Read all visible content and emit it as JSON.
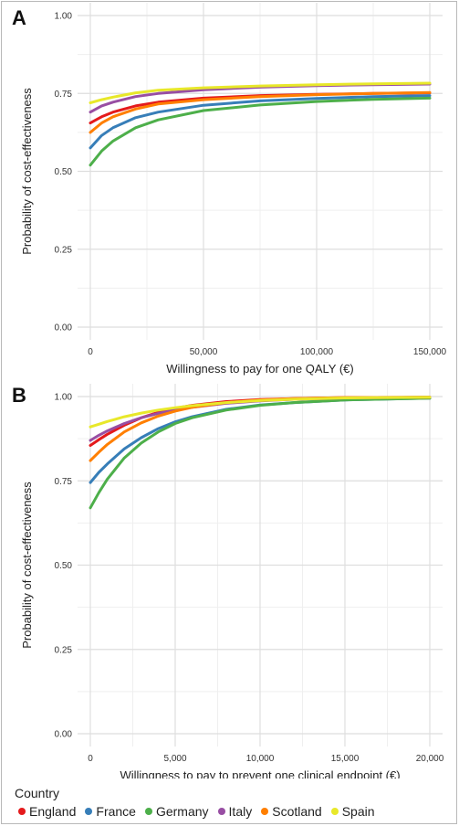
{
  "panels": {
    "a": {
      "letter": "A"
    },
    "b": {
      "letter": "B"
    }
  },
  "legend": {
    "title": "Country",
    "items": [
      {
        "name": "England",
        "color": "#e41a1c"
      },
      {
        "name": "France",
        "color": "#377eb8"
      },
      {
        "name": "Germany",
        "color": "#4daf4a"
      },
      {
        "name": "Italy",
        "color": "#984ea3"
      },
      {
        "name": "Scotland",
        "color": "#ff7f00"
      },
      {
        "name": "Spain",
        "color": "#e8e82a"
      }
    ]
  },
  "chart_data": [
    {
      "panel": "A",
      "type": "line",
      "title": "",
      "xlabel": "Willingness to pay for one QALY (€)",
      "ylabel": "Probability of cost-effectiveness",
      "xlim": [
        0,
        150000
      ],
      "ylim": [
        0,
        1
      ],
      "xticks": [
        0,
        50000,
        100000,
        150000
      ],
      "xtick_labels": [
        "0",
        "50,000",
        "100,000",
        "150,000"
      ],
      "yticks": [
        0,
        0.25,
        0.5,
        0.75,
        1
      ],
      "ytick_labels": [
        "0.00",
        "0.25",
        "0.50",
        "0.75",
        "1.00"
      ],
      "grid": true,
      "series": [
        {
          "name": "England",
          "color": "#e41a1c",
          "x": [
            0,
            5000,
            10000,
            20000,
            30000,
            50000,
            75000,
            100000,
            125000,
            150000
          ],
          "y": [
            0.655,
            0.675,
            0.69,
            0.71,
            0.722,
            0.735,
            0.743,
            0.747,
            0.75,
            0.752
          ]
        },
        {
          "name": "France",
          "color": "#377eb8",
          "x": [
            0,
            5000,
            10000,
            20000,
            30000,
            50000,
            75000,
            100000,
            125000,
            150000
          ],
          "y": [
            0.575,
            0.615,
            0.64,
            0.672,
            0.69,
            0.712,
            0.726,
            0.734,
            0.74,
            0.743
          ]
        },
        {
          "name": "Germany",
          "color": "#4daf4a",
          "x": [
            0,
            5000,
            10000,
            20000,
            30000,
            50000,
            75000,
            100000,
            125000,
            150000
          ],
          "y": [
            0.52,
            0.565,
            0.597,
            0.64,
            0.665,
            0.695,
            0.713,
            0.724,
            0.731,
            0.735
          ]
        },
        {
          "name": "Italy",
          "color": "#984ea3",
          "x": [
            0,
            5000,
            10000,
            20000,
            30000,
            50000,
            75000,
            100000,
            125000,
            150000
          ],
          "y": [
            0.69,
            0.71,
            0.722,
            0.74,
            0.75,
            0.762,
            0.77,
            0.775,
            0.778,
            0.78
          ]
        },
        {
          "name": "Scotland",
          "color": "#ff7f00",
          "x": [
            0,
            5000,
            10000,
            20000,
            30000,
            50000,
            75000,
            100000,
            125000,
            150000
          ],
          "y": [
            0.625,
            0.655,
            0.675,
            0.7,
            0.716,
            0.73,
            0.74,
            0.746,
            0.75,
            0.753
          ]
        },
        {
          "name": "Spain",
          "color": "#e8e82a",
          "x": [
            0,
            5000,
            10000,
            20000,
            30000,
            50000,
            75000,
            100000,
            125000,
            150000
          ],
          "y": [
            0.72,
            0.73,
            0.738,
            0.752,
            0.76,
            0.768,
            0.774,
            0.778,
            0.781,
            0.783
          ]
        }
      ]
    },
    {
      "panel": "B",
      "type": "line",
      "title": "",
      "xlabel": "Willingness to pay to prevent one clinical endpoint (€)",
      "ylabel": "Probability of cost-effectiveness",
      "xlim": [
        0,
        20000
      ],
      "ylim": [
        0,
        1
      ],
      "xticks": [
        0,
        5000,
        10000,
        15000,
        20000
      ],
      "xtick_labels": [
        "0",
        "5,000",
        "10,000",
        "15,000",
        "20,000"
      ],
      "yticks": [
        0,
        0.25,
        0.5,
        0.75,
        1
      ],
      "ytick_labels": [
        "0.00",
        "0.25",
        "0.50",
        "0.75",
        "1.00"
      ],
      "grid": true,
      "series": [
        {
          "name": "England",
          "color": "#e41a1c",
          "x": [
            0,
            500,
            1000,
            2000,
            3000,
            4000,
            5000,
            6000,
            8000,
            10000,
            12000,
            15000,
            20000
          ],
          "y": [
            0.855,
            0.872,
            0.888,
            0.915,
            0.937,
            0.953,
            0.965,
            0.974,
            0.985,
            0.991,
            0.994,
            0.997,
            0.998
          ]
        },
        {
          "name": "France",
          "color": "#377eb8",
          "x": [
            0,
            500,
            1000,
            2000,
            3000,
            4000,
            5000,
            6000,
            8000,
            10000,
            12000,
            15000,
            20000
          ],
          "y": [
            0.745,
            0.775,
            0.8,
            0.845,
            0.878,
            0.905,
            0.925,
            0.94,
            0.962,
            0.975,
            0.982,
            0.99,
            0.995
          ]
        },
        {
          "name": "Germany",
          "color": "#4daf4a",
          "x": [
            0,
            500,
            1000,
            2000,
            3000,
            4000,
            5000,
            6000,
            8000,
            10000,
            12000,
            15000,
            20000
          ],
          "y": [
            0.67,
            0.715,
            0.755,
            0.818,
            0.862,
            0.895,
            0.92,
            0.937,
            0.96,
            0.974,
            0.982,
            0.99,
            0.995
          ]
        },
        {
          "name": "Italy",
          "color": "#984ea3",
          "x": [
            0,
            500,
            1000,
            2000,
            3000,
            4000,
            5000,
            6000,
            8000,
            10000,
            12000,
            15000,
            20000
          ],
          "y": [
            0.87,
            0.885,
            0.898,
            0.92,
            0.937,
            0.95,
            0.96,
            0.968,
            0.98,
            0.987,
            0.992,
            0.996,
            0.998
          ]
        },
        {
          "name": "Scotland",
          "color": "#ff7f00",
          "x": [
            0,
            500,
            1000,
            2000,
            3000,
            4000,
            5000,
            6000,
            8000,
            10000,
            12000,
            15000,
            20000
          ],
          "y": [
            0.81,
            0.835,
            0.858,
            0.895,
            0.922,
            0.942,
            0.957,
            0.968,
            0.982,
            0.99,
            0.994,
            0.997,
            0.998
          ]
        },
        {
          "name": "Spain",
          "color": "#e8e82a",
          "x": [
            0,
            500,
            1000,
            2000,
            3000,
            4000,
            5000,
            6000,
            8000,
            10000,
            12000,
            15000,
            20000
          ],
          "y": [
            0.91,
            0.918,
            0.926,
            0.94,
            0.951,
            0.96,
            0.967,
            0.973,
            0.982,
            0.988,
            0.992,
            0.996,
            0.998
          ]
        }
      ]
    }
  ]
}
